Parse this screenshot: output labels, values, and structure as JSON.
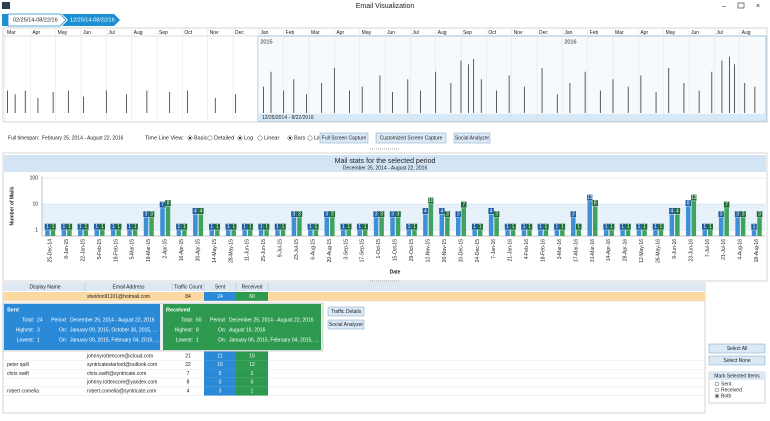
{
  "window": {
    "title": "Email Visualization"
  },
  "breadcrumbs": [
    "02/25/14-08/22/16",
    "12/25/14-08/22/16"
  ],
  "timeline": {
    "months": [
      "Mar",
      "Apr",
      "May",
      "Jun",
      "Jul",
      "Aug",
      "Sep",
      "Oct",
      "Nov",
      "Dec",
      "Jan",
      "Feb",
      "Mar",
      "Apr",
      "May",
      "Jun",
      "Jul",
      "Aug",
      "Sep",
      "Oct",
      "Nov",
      "Dec",
      "Jan",
      "Feb",
      "Mar",
      "Apr",
      "May",
      "Jun",
      "Jul",
      "Aug"
    ],
    "years": [
      "2015",
      "2016"
    ],
    "selection": "12/25/2014 - 8/22/2016",
    "xlim": [
      0,
      30
    ],
    "ylim": [
      0,
      100
    ],
    "spikes": {
      "x": [
        0.1,
        0.4,
        0.8,
        1.3,
        1.9,
        2.5,
        3.1,
        4.0,
        4.8,
        5.6,
        6.5,
        7.2,
        8.3,
        9.1,
        10.2,
        10.5,
        11.0,
        11.4,
        11.9,
        12.5,
        13.0,
        13.6,
        14.1,
        14.8,
        15.3,
        15.9,
        16.4,
        17.0,
        17.6,
        18.0,
        18.3,
        18.5,
        18.8,
        19.4,
        19.9,
        20.5,
        21.2,
        21.8,
        22.3,
        22.9,
        23.5,
        24.0,
        24.6,
        25.1,
        25.7,
        26.2,
        26.8,
        27.4,
        27.9,
        28.3,
        28.6,
        28.8,
        29.2,
        29.6
      ],
      "values": [
        30,
        25,
        30,
        20,
        28,
        30,
        22,
        30,
        25,
        30,
        28,
        30,
        20,
        25,
        35,
        55,
        30,
        45,
        25,
        40,
        60,
        30,
        35,
        50,
        28,
        45,
        30,
        55,
        40,
        70,
        65,
        72,
        45,
        30,
        50,
        35,
        60,
        25,
        40,
        55,
        30,
        45,
        35,
        50,
        28,
        60,
        40,
        30,
        55,
        70,
        75,
        65,
        40,
        35
      ]
    }
  },
  "controls": {
    "full_timespan_label": "Full timespan:",
    "full_timespan": "February 25, 2014 - August 22, 2016",
    "view_label": "Time Line View:",
    "options": [
      {
        "label": "Basic",
        "checked": true
      },
      {
        "label": "Detailed",
        "checked": false
      },
      {
        "label": "Log",
        "checked": true
      },
      {
        "label": "Linear",
        "checked": false
      },
      {
        "label": "Bars",
        "checked": true
      },
      {
        "label": "Line",
        "checked": false
      }
    ],
    "buttons": [
      "Full Screen Capture",
      "Customized Screen Capture",
      "Social Analyzer"
    ]
  },
  "chart_data": {
    "type": "bar",
    "title": "Mail stats for the selected period",
    "subtitle": "December 25, 2014 - August 22, 2016",
    "xlabel": "Date",
    "ylabel": "Number of Mails",
    "log": true,
    "categories": [
      "25-Dec-14",
      "8-Jan-15",
      "22-Jan-15",
      "5-Feb-15",
      "19-Feb-15",
      "5-Mar-15",
      "19-Mar-15",
      "2-Apr-15",
      "16-Apr-15",
      "30-Apr-15",
      "14-May-15",
      "28-May-15",
      "11-Jun-15",
      "25-Jun-15",
      "9-Jul-15",
      "23-Jul-15",
      "6-Aug-15",
      "20-Aug-15",
      "3-Sep-15",
      "17-Sep-15",
      "1-Oct-15",
      "15-Oct-15",
      "29-Oct-15",
      "12-Nov-15",
      "26-Nov-15",
      "10-Dec-15",
      "24-Dec-15",
      "7-Jan-16",
      "21-Jan-16",
      "4-Feb-16",
      "18-Feb-16",
      "3-Mar-16",
      "17-Mar-16",
      "31-Mar-16",
      "14-Apr-16",
      "28-Apr-16",
      "12-May-16",
      "26-May-16",
      "9-Jun-16",
      "23-Jun-16",
      "7-Jul-16",
      "21-Jul-16",
      "4-Aug-16",
      "18-Aug-16"
    ],
    "series": [
      {
        "color": "#3d8fd6",
        "label_color": "#1f5f9e",
        "values": [
          1,
          1,
          1,
          1,
          1,
          1,
          3,
          7,
          1,
          4,
          1,
          1,
          1,
          1,
          1,
          3,
          1,
          3,
          1,
          1,
          3,
          3,
          1,
          4,
          4,
          3,
          1,
          4,
          1,
          1,
          1,
          1,
          3,
          13,
          1,
          1,
          1,
          1,
          4,
          8,
          1,
          3,
          3,
          1
        ]
      },
      {
        "color": "#3fa35e",
        "label_color": "#1d6b35",
        "values": [
          1,
          1,
          1,
          1,
          1,
          1,
          3,
          8,
          1,
          4,
          1,
          1,
          1,
          1,
          1,
          3,
          1,
          3,
          1,
          1,
          3,
          3,
          1,
          10,
          3,
          7,
          1,
          3,
          1,
          1,
          1,
          1,
          1,
          8,
          1,
          1,
          1,
          1,
          4,
          13,
          1,
          7,
          3,
          3
        ]
      }
    ],
    "ylim": [
      0.6,
      100
    ],
    "yticks": [
      1,
      10,
      100
    ],
    "grid": true
  },
  "grid": {
    "columns": [
      "Display Name",
      "Email Address",
      "Traffic Count",
      "Sent",
      "Received"
    ],
    "selected_row": [
      null,
      "sheldon91101@hotmail.com",
      84,
      24,
      60
    ],
    "rows": [
      [
        null,
        "johnnyrottencore@icloud.com",
        21,
        11,
        10
      ],
      [
        "peter quill",
        "syntricatestarlord@outlook.com",
        22,
        10,
        12
      ],
      [
        "chris swift",
        "chris.swift@syntricate.com",
        7,
        5,
        2
      ],
      [
        null,
        "johnny.rottencore@yandex.com",
        8,
        3,
        5
      ],
      [
        "robert cornelia",
        "robert.cornelia@syntricate.com",
        4,
        3,
        1
      ]
    ]
  },
  "popup": {
    "labels": {
      "total": "Total:",
      "period": "Period:",
      "highest": "Highest:",
      "lowest": "Lowest:",
      "on": "On:"
    },
    "sent": {
      "title": "Sent",
      "total": 24,
      "period": "December 25, 2014 - August 22, 2016",
      "highest": 3,
      "highest_on": "January 09, 2015, October 30, 2015, ...",
      "lowest": 1,
      "lowest_on": "January 09, 2015, February 04, 2015, ..."
    },
    "received": {
      "title": "Received",
      "total": 60,
      "period": "December 25, 2014 - August 22, 2016",
      "highest": 8,
      "highest_on": "August 16, 2016",
      "lowest": 1,
      "lowest_on": "January 06, 2015, February 04, 2015, ..."
    },
    "buttons": [
      "Traffic Details",
      "Social Analyzer"
    ]
  },
  "side_panel": {
    "buttons": [
      "Select All",
      "Select None"
    ],
    "mark_title": "Mark Selected Items",
    "mark_options": [
      {
        "label": "Sent",
        "checked": false
      },
      {
        "label": "Received",
        "checked": false
      },
      {
        "label": "Both",
        "checked": true
      }
    ]
  }
}
